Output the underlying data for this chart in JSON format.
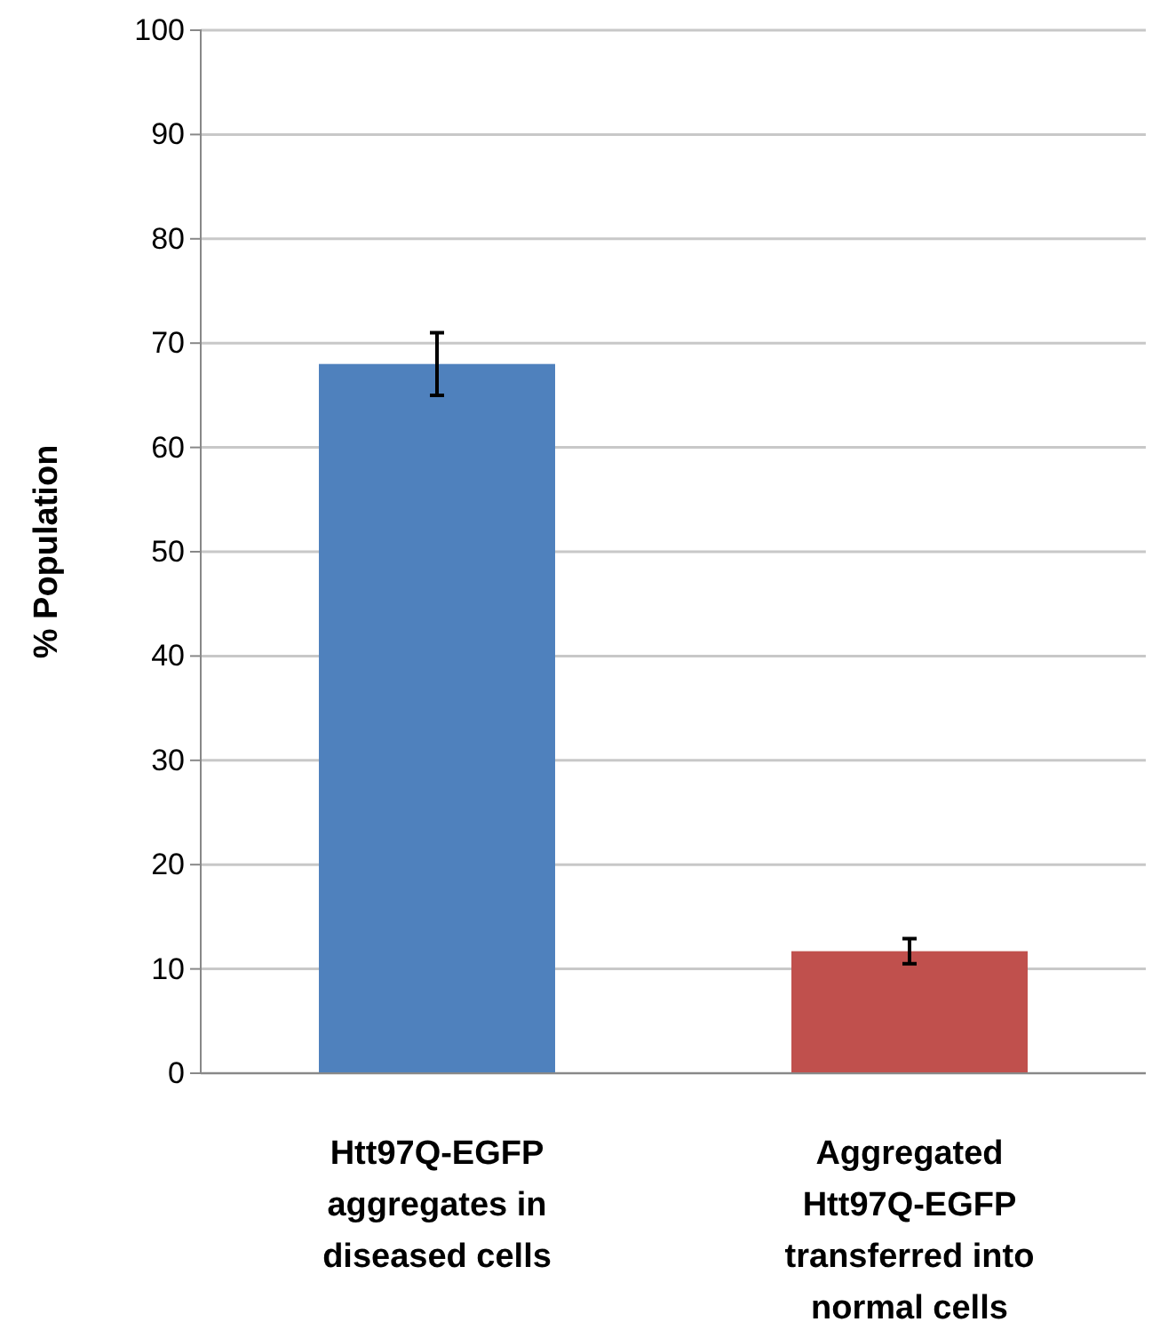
{
  "chart_data": {
    "type": "bar",
    "ylabel": "% Population",
    "categories": [
      "Htt97Q-EGFP aggregates in diseased cells",
      "Aggregated Htt97Q-EGFP transferred into normal cells"
    ],
    "values": [
      68,
      11.7
    ],
    "colors": [
      "#4f81bd",
      "#c0504d"
    ],
    "errors": [
      3,
      1.2
    ],
    "ylim": [
      0,
      100
    ],
    "yticks": [
      0,
      10,
      20,
      30,
      40,
      50,
      60,
      70,
      80,
      90,
      100
    ],
    "grid": "y"
  }
}
